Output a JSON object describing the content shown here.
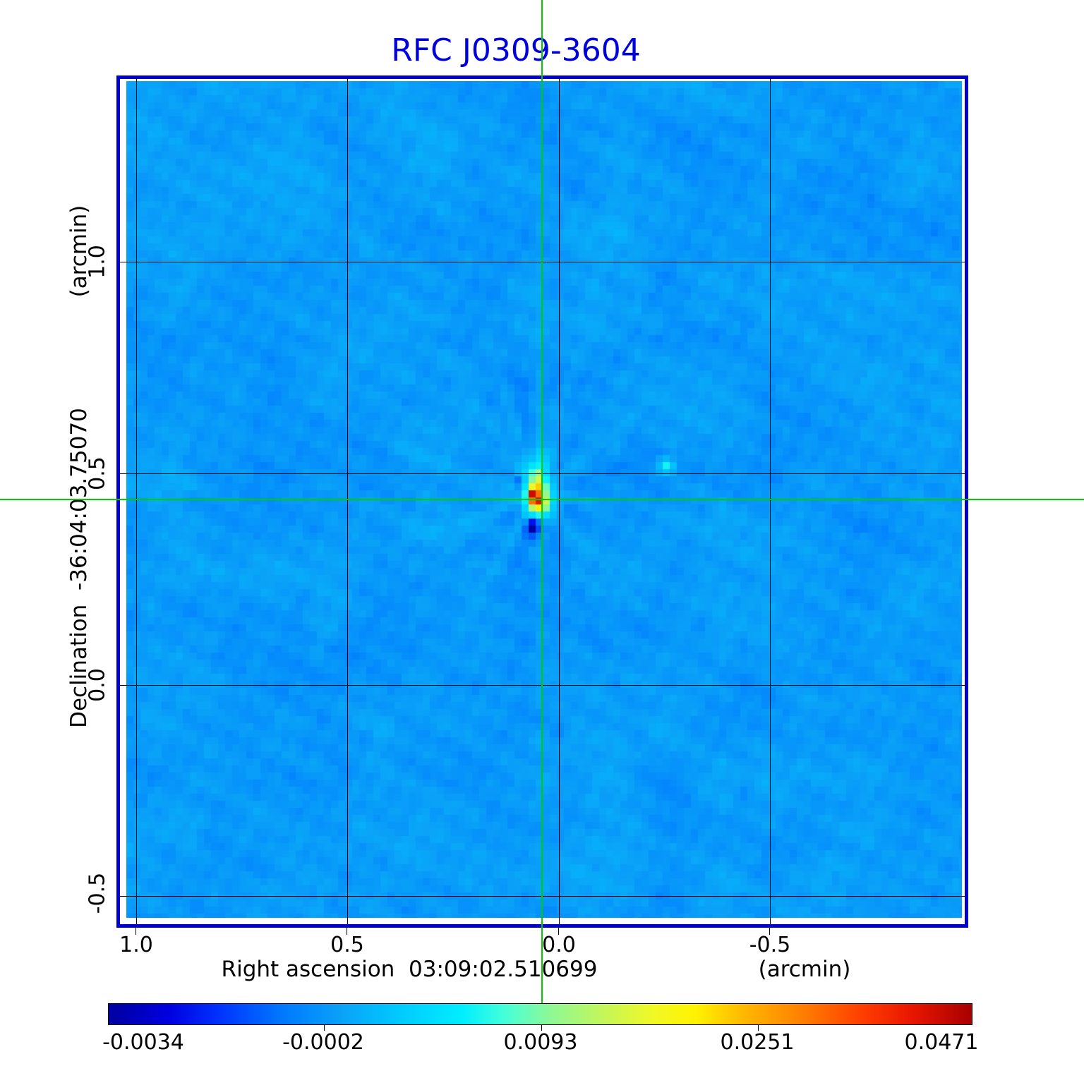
{
  "title": {
    "text": "RFC J0309-3604",
    "color": "#0000dd"
  },
  "frame_color": "#0000cc",
  "crosshair": {
    "color": "#00cc00"
  },
  "axes": {
    "x": {
      "label_main": "Right ascension  03:09:02.510699",
      "label_unit": "(arcmin)",
      "ticks": [
        "1.0",
        "0.5",
        "0.0",
        "-0.5"
      ]
    },
    "y": {
      "label_main": "Declination  -36:04:03.75070",
      "label_unit": "(arcmin)",
      "ticks": [
        "1.0",
        "0.5",
        "0.0",
        "-0.5"
      ]
    }
  },
  "colorbar": {
    "tick_labels": [
      "-0.0034",
      "-0.0002",
      "0.0093",
      "0.0251",
      "0.0471"
    ],
    "gradient_stops": [
      [
        0.0,
        "#0000a0"
      ],
      [
        0.07,
        "#0000e0"
      ],
      [
        0.13,
        "#0034ff"
      ],
      [
        0.2,
        "#0078ff"
      ],
      [
        0.27,
        "#0aa2f8"
      ],
      [
        0.34,
        "#00ccff"
      ],
      [
        0.41,
        "#00eeff"
      ],
      [
        0.46,
        "#46ffd8"
      ],
      [
        0.51,
        "#8cf898"
      ],
      [
        0.57,
        "#c2f65c"
      ],
      [
        0.63,
        "#f0f826"
      ],
      [
        0.68,
        "#fff200"
      ],
      [
        0.74,
        "#ffb400"
      ],
      [
        0.8,
        "#ff8200"
      ],
      [
        0.87,
        "#ff4000"
      ],
      [
        0.93,
        "#ea1600"
      ],
      [
        1.0,
        "#a80000"
      ]
    ]
  },
  "chart_data": {
    "type": "heatmap",
    "title": "RFC J0309-3604",
    "xlabel": "Right ascension 03:09:02.510699 (arcmin)",
    "ylabel": "Declination -36:04:03.75070 (arcmin)",
    "x_ticks": [
      1.0,
      0.5,
      0.0,
      -0.5
    ],
    "y_ticks": [
      1.0,
      0.5,
      0.0,
      -0.5
    ],
    "x_range": [
      1.04,
      -0.96
    ],
    "y_range": [
      -0.57,
      1.44
    ],
    "grid": true,
    "colorbar_ticks": [
      -0.0034,
      -0.0002,
      0.0093,
      0.0251,
      0.0471
    ],
    "color_scale": "sqrt",
    "value_range": [
      -0.0034,
      0.0471
    ],
    "background_level": 0.0,
    "background_rms_estimate": 0.0005,
    "peak_value": 0.047,
    "peak_offset_arcmin": [
      0.04,
      0.44
    ],
    "crosshair_arcmin": [
      0.04,
      0.44
    ],
    "secondary_feature": {
      "col": 76,
      "row": 54,
      "offset_arcmin": [
        -0.26,
        0.52
      ],
      "unit": 0.001,
      "values": [
        [
          0.8,
          1.5,
          0.8
        ],
        [
          1.5,
          6,
          2.2
        ],
        [
          0.8,
          1.8,
          1.0
        ]
      ]
    },
    "source_pattern": {
      "center_col": 58,
      "center_row": 58,
      "dx0": -4,
      "dy0": -6,
      "unit": 0.001,
      "values": [
        [
          0,
          0,
          0,
          0.8,
          1.6,
          0.9,
          0.3,
          0,
          0
        ],
        [
          0,
          0,
          0.4,
          1.8,
          2.8,
          1.6,
          0.4,
          0,
          0
        ],
        [
          0,
          0,
          0.9,
          3.5,
          4.5,
          2.2,
          0.8,
          0,
          0
        ],
        [
          0,
          0.4,
          1.5,
          6,
          10,
          3,
          1,
          0.4,
          0
        ],
        [
          0,
          -1.6,
          2,
          9,
          14,
          5,
          1.4,
          0.4,
          0
        ],
        [
          0,
          -1.1,
          4,
          16,
          22,
          8,
          2,
          0.5,
          0
        ],
        [
          0,
          0.5,
          6,
          43,
          30,
          10,
          2.5,
          0.5,
          0
        ],
        [
          0,
          0.5,
          5,
          30,
          41,
          14,
          3,
          0.6,
          0
        ],
        [
          0,
          0.4,
          3,
          12,
          20,
          10,
          2.5,
          0.5,
          0
        ],
        [
          0,
          0,
          1,
          3.5,
          6,
          4,
          1.2,
          0,
          0
        ],
        [
          0,
          0,
          -0.6,
          -2.6,
          -2,
          0.5,
          0.5,
          0,
          0
        ],
        [
          0,
          0,
          -1.2,
          -3.3,
          -2.9,
          -0.6,
          0,
          0,
          0
        ],
        [
          0,
          0,
          -0.5,
          -1.6,
          -1.3,
          0,
          0,
          0,
          0
        ],
        [
          0,
          0,
          0,
          -0.5,
          -0.5,
          0,
          0,
          0,
          0
        ]
      ]
    }
  }
}
